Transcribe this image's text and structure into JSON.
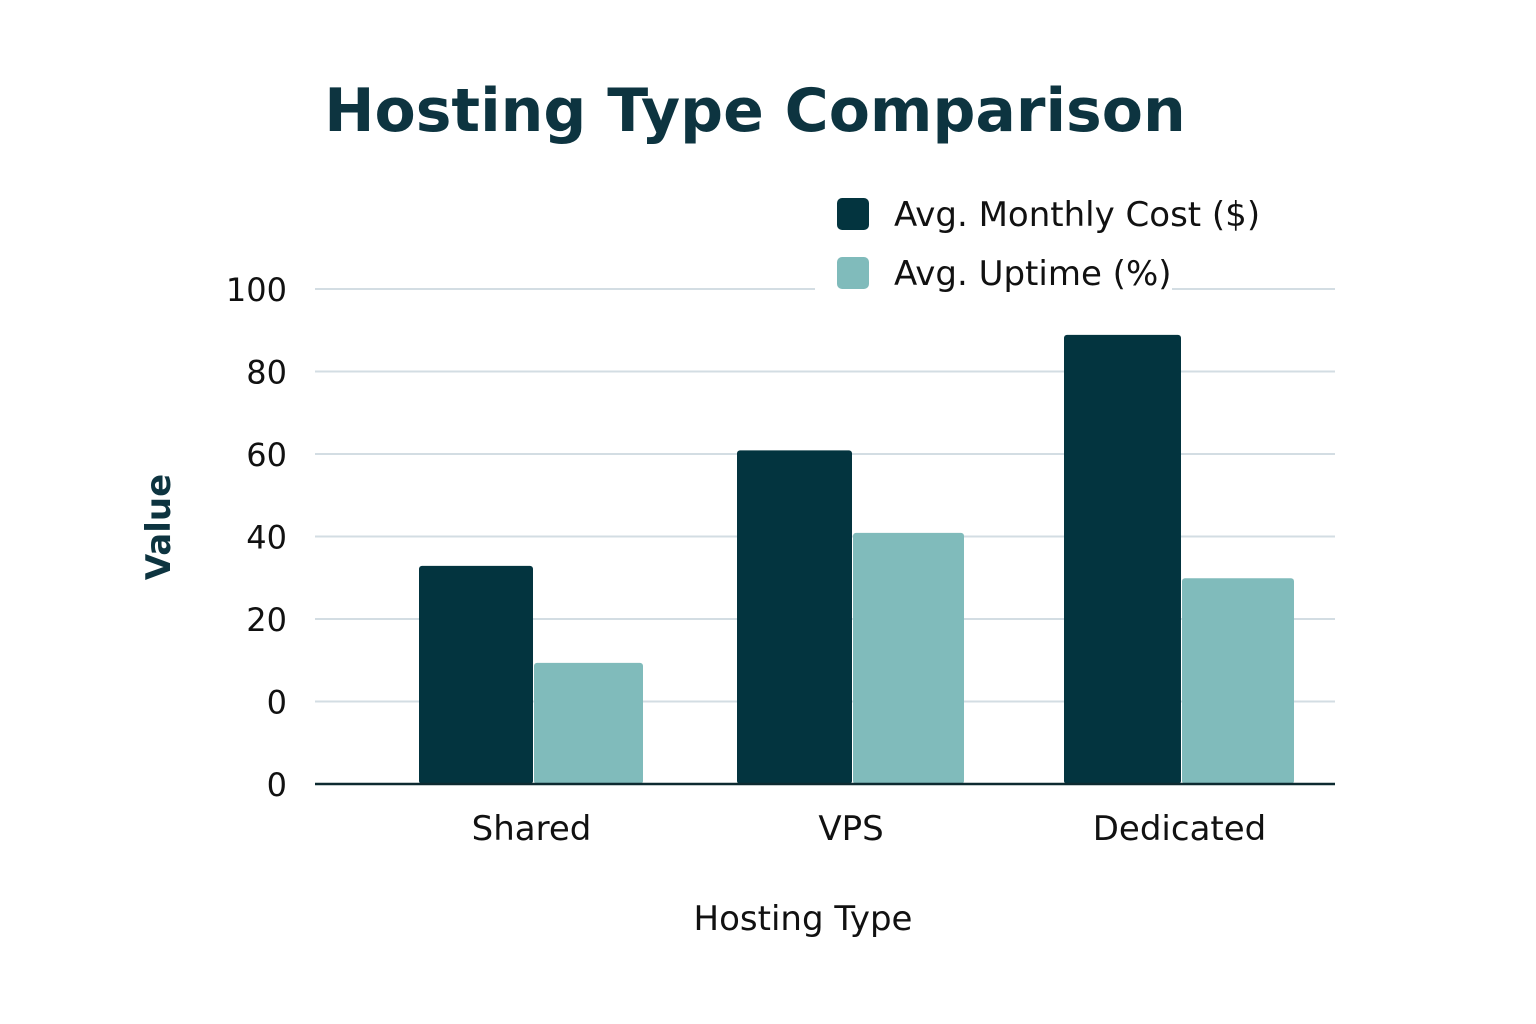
{
  "chart_data": {
    "type": "bar",
    "title": "Hosting Type Comparison",
    "xlabel": "Hosting Type",
    "ylabel": "Value",
    "categories": [
      "Shared",
      "VPS",
      "Dedicated"
    ],
    "y_tick_labels": [
      "100",
      "80",
      "60",
      "40",
      "20",
      "0",
      "0"
    ],
    "grid": true,
    "legend_position": "top-right",
    "series": [
      {
        "name": "Avg. Monthly Cost ($)",
        "color": "#03343f",
        "values": [
          33,
          61,
          89
        ]
      },
      {
        "name": "Avg. Uptime (%)",
        "color": "#80bbbb",
        "values": [
          9.5,
          41,
          30
        ]
      }
    ]
  }
}
